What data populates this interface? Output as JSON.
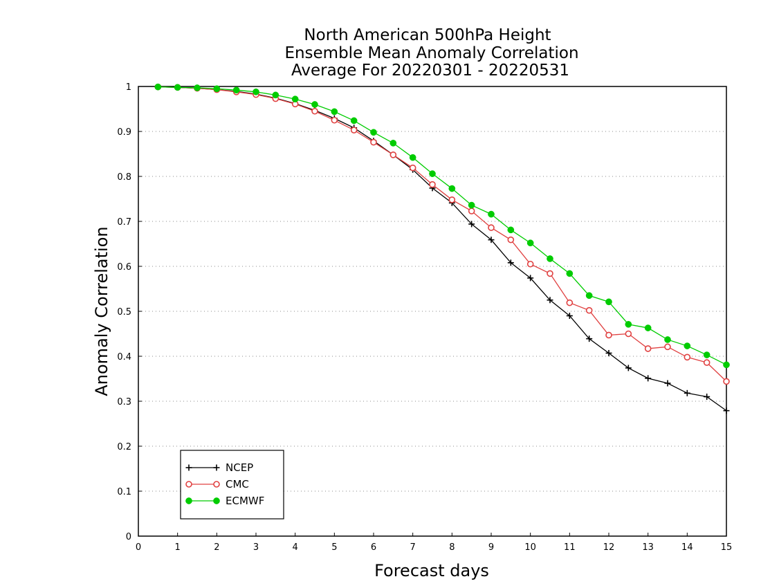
{
  "chart_data": {
    "type": "line",
    "title_lines": [
      "North American 500hPa Height",
      "Ensemble Mean Anomaly Correlation",
      "Average For 20220301 - 20220531"
    ],
    "xlabel": "Forecast days",
    "ylabel": "Anomaly Correlation",
    "xlim": [
      0,
      15
    ],
    "ylim": [
      0,
      1
    ],
    "x_ticks": [
      "0",
      "1",
      "2",
      "3",
      "4",
      "5",
      "6",
      "7",
      "8",
      "9",
      "10",
      "11",
      "12",
      "13",
      "14",
      "15"
    ],
    "y_ticks": [
      "0",
      "0.1",
      "0.2",
      "0.3",
      "0.4",
      "0.5",
      "0.6",
      "0.7",
      "0.8",
      "0.9",
      "1"
    ],
    "grid": "horizontal dotted",
    "legend_position": "bottom-left",
    "x": [
      0.5,
      1,
      1.5,
      2,
      2.5,
      3,
      3.5,
      4,
      4.5,
      5,
      5.5,
      6,
      6.5,
      7,
      7.5,
      8,
      8.5,
      9,
      9.5,
      10,
      10.5,
      11,
      11.5,
      12,
      12.5,
      13,
      13.5,
      14,
      14.5,
      15
    ],
    "series": [
      {
        "name": "NCEP",
        "color": "#000000",
        "marker": "plus",
        "values": [
          0.999,
          0.998,
          0.996,
          0.993,
          0.989,
          0.983,
          0.974,
          0.962,
          0.947,
          0.929,
          0.908,
          0.879,
          0.848,
          0.815,
          0.774,
          0.741,
          0.694,
          0.659,
          0.608,
          0.574,
          0.525,
          0.49,
          0.439,
          0.407,
          0.374,
          0.351,
          0.34,
          0.318,
          0.31,
          0.279
        ]
      },
      {
        "name": "CMC",
        "color": "#e04040",
        "marker": "open-circle",
        "values": [
          0.999,
          0.998,
          0.996,
          0.993,
          0.988,
          0.982,
          0.973,
          0.961,
          0.945,
          0.925,
          0.903,
          0.876,
          0.848,
          0.819,
          0.782,
          0.748,
          0.723,
          0.686,
          0.659,
          0.605,
          0.584,
          0.519,
          0.502,
          0.447,
          0.45,
          0.417,
          0.421,
          0.398,
          0.386,
          0.344
        ]
      },
      {
        "name": "ECMWF",
        "color": "#00cc00",
        "marker": "filled-circle",
        "values": [
          0.999,
          0.998,
          0.997,
          0.995,
          0.992,
          0.988,
          0.981,
          0.972,
          0.96,
          0.944,
          0.924,
          0.898,
          0.874,
          0.842,
          0.806,
          0.773,
          0.736,
          0.716,
          0.681,
          0.652,
          0.617,
          0.584,
          0.535,
          0.521,
          0.471,
          0.463,
          0.437,
          0.423,
          0.403,
          0.381
        ]
      }
    ]
  }
}
